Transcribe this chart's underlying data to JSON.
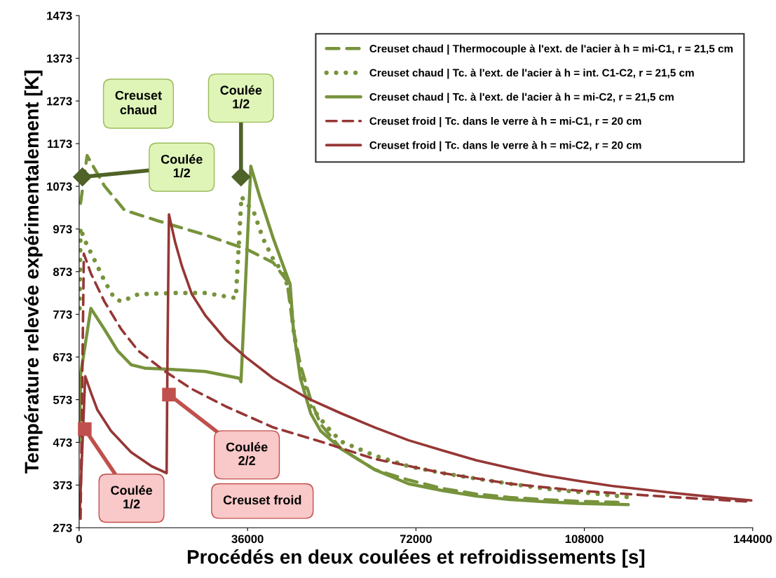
{
  "chart_data": {
    "type": "line",
    "xlabel": "Procédés en deux coulées et refroidissements [s]",
    "ylabel": "Température relevée expérimentalement [K]",
    "xlim": [
      0,
      144000
    ],
    "xticks": [
      0,
      36000,
      72000,
      108000,
      144000
    ],
    "ylim": [
      273,
      1473
    ],
    "yticks": [
      273,
      373,
      473,
      573,
      673,
      773,
      873,
      973,
      1073,
      1173,
      1273,
      1373,
      1473
    ],
    "grid": false,
    "legend": "top right",
    "series": [
      {
        "name": "Creuset chaud | Thermocouple à l'ext. de l'acier à h = mi-C1, r = 21,5 cm",
        "color": "#77933c",
        "line_style": "dashed",
        "x": [
          300,
          1700,
          5400,
          9700,
          16900,
          27000,
          35700,
          41500,
          44400,
          45800,
          47300,
          49500,
          51600,
          56000,
          63200,
          70400,
          77700,
          84900,
          92100,
          99300,
          106600,
          116700
        ],
        "values": [
          1033,
          1145,
          1074,
          1017,
          992,
          959,
          926,
          894,
          852,
          738,
          655,
          573,
          516,
          458,
          409,
          385,
          365,
          352,
          344,
          339,
          335,
          332
        ]
      },
      {
        "name": "Creuset chaud | Tc. à l'ext. de l'acier à h = int. C1-C2, r = 21,5 cm",
        "color": "#77933c",
        "line_style": "dotted",
        "x": [
          100,
          300,
          1000,
          3200,
          5400,
          7500,
          9000,
          12600,
          19800,
          27000,
          33500,
          34700,
          35700,
          37200,
          39300,
          41500,
          43700,
          45100,
          45800,
          47300,
          49500,
          53100,
          56000,
          63200,
          70400,
          77700,
          84900,
          92100,
          99300,
          106600,
          113800,
          117900
        ],
        "values": [
          787,
          976,
          951,
          902,
          852,
          811,
          803,
          820,
          823,
          823,
          811,
          1049,
          1033,
          1017,
          951,
          902,
          869,
          820,
          738,
          639,
          557,
          508,
          475,
          442,
          417,
          401,
          388,
          376,
          365,
          357,
          349,
          344
        ]
      },
      {
        "name": "Creuset chaud | Tc. à l'ext. de l'acier à h = mi-C2, r = 21,5 cm",
        "color": "#77933c",
        "line_style": "solid",
        "x": [
          100,
          300,
          2500,
          5400,
          8200,
          11100,
          14000,
          19800,
          27000,
          34300,
          34600,
          36700,
          38600,
          41500,
          43700,
          45100,
          45800,
          47300,
          49500,
          51600,
          56000,
          63200,
          70400,
          77700,
          84900,
          92100,
          99300,
          106600,
          117400
        ],
        "values": [
          475,
          631,
          787,
          738,
          688,
          655,
          647,
          644,
          639,
          623,
          615,
          1120,
          1049,
          951,
          885,
          844,
          738,
          623,
          541,
          500,
          458,
          409,
          376,
          360,
          347,
          339,
          334,
          330,
          327
        ]
      },
      {
        "name": "Creuset froid | Tc. dans le verre à h = mi-C1, r = 20 cm",
        "color": "#953735",
        "line_style": "dashed",
        "x": [
          300,
          1000,
          2500,
          5400,
          9000,
          12600,
          18400,
          24100,
          31400,
          41500,
          51600,
          63200,
          77700,
          92100,
          106600,
          121000,
          135500,
          143700
        ],
        "values": [
          294,
          915,
          869,
          803,
          738,
          688,
          639,
          598,
          557,
          508,
          475,
          434,
          401,
          376,
          360,
          349,
          339,
          334
        ]
      },
      {
        "name": "Creuset froid | Tc. dans le verre à h = mi-C2, r = 20 cm",
        "color": "#953735",
        "line_style": "solid",
        "x": [
          100,
          1300,
          2500,
          3900,
          6800,
          11100,
          15500,
          18700,
          18900,
          19200,
          20500,
          22000,
          24100,
          27000,
          31400,
          35700,
          41500,
          48700,
          56000,
          63200,
          70400,
          77700,
          84900,
          92100,
          99300,
          106600,
          113800,
          121000,
          128300,
          135500,
          143700
        ],
        "values": [
          303,
          628,
          590,
          549,
          500,
          450,
          417,
          401,
          700,
          1007,
          943,
          885,
          820,
          770,
          713,
          672,
          623,
          577,
          541,
          508,
          478,
          454,
          431,
          413,
          396,
          383,
          371,
          362,
          353,
          345,
          337
        ]
      }
    ],
    "annotations": [
      "Creuset chaud",
      {
        "text": "Coulée\n1/2",
        "x": 700,
        "y": 1095
      },
      {
        "text": "Coulée\n1/2",
        "x": 34600,
        "y": 1095
      },
      {
        "text": "Coulée\n1/2",
        "x": 1200,
        "y": 504
      },
      {
        "text": "Coulée\n2/2",
        "x": 19200,
        "y": 585
      },
      "Creuset froid"
    ]
  }
}
